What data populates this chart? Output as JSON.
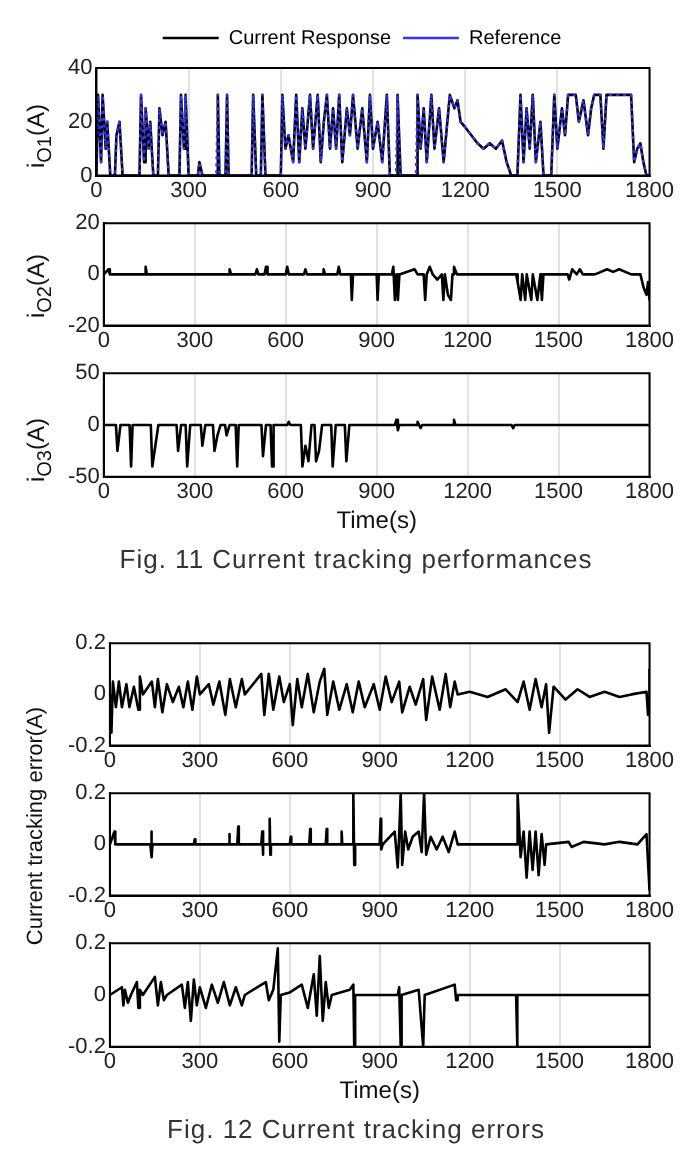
{
  "chart_data": [
    {
      "type": "line",
      "ylabel": "i$_{O1}$(A)",
      "xlim": [
        0,
        1800
      ],
      "xticks": [
        0,
        300,
        600,
        900,
        1200,
        1500,
        1800
      ],
      "ylim": [
        0,
        40
      ],
      "yticks": [
        0,
        20,
        40
      ],
      "grid": "x",
      "legend": "top",
      "marker": "none",
      "x": [
        0,
        5,
        15,
        20,
        30,
        35,
        45,
        60,
        65,
        75,
        85,
        140,
        145,
        155,
        160,
        170,
        175,
        185,
        200,
        205,
        215,
        225,
        235,
        270,
        275,
        285,
        290,
        300,
        330,
        335,
        345,
        390,
        395,
        400,
        420,
        425,
        430,
        505,
        510,
        520,
        535,
        540,
        550,
        600,
        605,
        615,
        625,
        640,
        650,
        660,
        670,
        680,
        695,
        705,
        720,
        730,
        740,
        750,
        760,
        770,
        780,
        790,
        800,
        815,
        825,
        835,
        850,
        865,
        880,
        890,
        900,
        915,
        930,
        945,
        955,
        975,
        980,
        990,
        1040,
        1045,
        1055,
        1065,
        1075,
        1090,
        1100,
        1115,
        1130,
        1150,
        1165,
        1175,
        1185,
        1200,
        1220,
        1240,
        1260,
        1280,
        1300,
        1320,
        1335,
        1350,
        1370,
        1380,
        1390,
        1400,
        1410,
        1420,
        1430,
        1445,
        1455,
        1480,
        1490,
        1500,
        1515,
        1525,
        1535,
        1560,
        1570,
        1585,
        1600,
        1610,
        1620,
        1640,
        1650,
        1660,
        1740,
        1750,
        1760,
        1770,
        1780,
        1790,
        1800
      ],
      "series": [
        {
          "name": "Current Response",
          "color": "#000000",
          "line_style": "solid",
          "values": [
            0,
            30,
            5,
            30,
            10,
            20,
            0,
            0,
            15,
            20,
            0,
            0,
            30,
            5,
            25,
            10,
            20,
            0,
            0,
            25,
            15,
            20,
            0,
            0,
            30,
            10,
            30,
            0,
            0,
            5,
            0,
            0,
            30,
            0,
            0,
            30,
            0,
            0,
            30,
            0,
            0,
            30,
            0,
            0,
            30,
            10,
            15,
            5,
            30,
            5,
            25,
            10,
            30,
            10,
            30,
            5,
            20,
            30,
            10,
            25,
            10,
            30,
            5,
            25,
            15,
            30,
            10,
            25,
            5,
            30,
            10,
            20,
            5,
            30,
            0,
            0,
            30,
            0,
            0,
            30,
            10,
            25,
            5,
            30,
            10,
            25,
            5,
            30,
            25,
            28,
            20,
            18,
            15,
            12,
            10,
            12,
            10,
            13,
            5,
            0,
            0,
            30,
            5,
            25,
            10,
            30,
            5,
            20,
            0,
            0,
            30,
            10,
            25,
            15,
            30,
            30,
            20,
            28,
            15,
            25,
            30,
            30,
            10,
            30,
            30,
            5,
            10,
            12,
            5,
            0,
            0
          ]
        },
        {
          "name": "Reference",
          "color": "#3333ff",
          "line_style": "dotted",
          "values": [
            0,
            30,
            5,
            30,
            10,
            20,
            0,
            0,
            15,
            20,
            0,
            0,
            30,
            5,
            25,
            10,
            20,
            0,
            0,
            25,
            15,
            20,
            0,
            0,
            30,
            10,
            30,
            0,
            0,
            5,
            0,
            0,
            30,
            0,
            0,
            30,
            0,
            0,
            30,
            0,
            0,
            30,
            0,
            0,
            30,
            10,
            15,
            5,
            30,
            5,
            25,
            10,
            30,
            10,
            30,
            5,
            20,
            30,
            10,
            25,
            10,
            30,
            5,
            25,
            15,
            30,
            10,
            25,
            5,
            30,
            10,
            20,
            5,
            30,
            0,
            0,
            30,
            0,
            0,
            30,
            10,
            25,
            5,
            30,
            10,
            25,
            5,
            30,
            25,
            28,
            20,
            18,
            15,
            12,
            10,
            12,
            10,
            13,
            5,
            0,
            0,
            30,
            5,
            25,
            10,
            30,
            5,
            20,
            0,
            0,
            30,
            10,
            25,
            15,
            30,
            30,
            20,
            28,
            15,
            25,
            30,
            30,
            10,
            30,
            30,
            5,
            10,
            12,
            5,
            0,
            0
          ]
        }
      ]
    },
    {
      "type": "line",
      "ylabel": "i$_{O2}$(A)",
      "xlim": [
        0,
        1800
      ],
      "xticks": [
        0,
        300,
        600,
        900,
        1200,
        1500,
        1800
      ],
      "ylim": [
        -20,
        20
      ],
      "yticks": [
        -20,
        0,
        20
      ],
      "grid": "x",
      "marker": "none",
      "x": [
        0,
        15,
        20,
        135,
        138,
        142,
        410,
        415,
        420,
        500,
        505,
        510,
        530,
        535,
        540,
        600,
        605,
        610,
        660,
        665,
        670,
        720,
        725,
        730,
        770,
        775,
        780,
        815,
        818,
        822,
        900,
        903,
        907,
        950,
        955,
        960,
        965,
        970,
        975,
        1025,
        1035,
        1055,
        1060,
        1065,
        1075,
        1085,
        1100,
        1115,
        1120,
        1125,
        1135,
        1145,
        1150,
        1155,
        1165,
        1360,
        1365,
        1375,
        1380,
        1390,
        1395,
        1410,
        1415,
        1430,
        1440,
        1445,
        1450,
        1530,
        1535,
        1545,
        1560,
        1570,
        1580,
        1620,
        1640,
        1660,
        1680,
        1700,
        1720,
        1740,
        1770,
        1780,
        1790,
        1795,
        1800
      ],
      "series": [
        {
          "color": "#000000",
          "values": [
            0,
            2,
            0,
            0,
            3,
            0,
            0,
            2,
            0,
            0,
            2,
            0,
            0,
            3,
            0,
            0,
            3,
            0,
            0,
            2,
            0,
            0,
            2,
            0,
            0,
            3,
            0,
            0,
            -10,
            0,
            0,
            -10,
            0,
            0,
            3,
            -10,
            0,
            -10,
            0,
            2,
            0,
            0,
            -10,
            0,
            3,
            0,
            -2,
            0,
            -10,
            0,
            -8,
            -10,
            0,
            3,
            0,
            0,
            -3,
            -10,
            0,
            -10,
            0,
            -10,
            0,
            -10,
            0,
            -10,
            0,
            0,
            -2,
            2,
            0,
            2,
            0,
            0,
            1,
            2,
            1,
            2,
            1,
            0,
            0,
            -5,
            -8,
            -3,
            -10
          ]
        }
      ]
    },
    {
      "type": "line",
      "ylabel": "i$_{O3}$(A)",
      "xlabel": "Time(s)",
      "annotations": [
        "Fig. 11 Current tracking performances"
      ],
      "xlim": [
        0,
        1800
      ],
      "xticks": [
        0,
        300,
        600,
        900,
        1200,
        1500,
        1800
      ],
      "ylim": [
        -50,
        50
      ],
      "yticks": [
        -50,
        0,
        50
      ],
      "grid": "x",
      "marker": "none",
      "x": [
        0,
        40,
        45,
        55,
        85,
        90,
        95,
        155,
        160,
        170,
        180,
        240,
        245,
        255,
        270,
        275,
        285,
        320,
        325,
        335,
        360,
        365,
        375,
        385,
        400,
        405,
        415,
        435,
        440,
        445,
        520,
        525,
        535,
        550,
        555,
        560,
        605,
        610,
        615,
        650,
        655,
        665,
        675,
        685,
        695,
        700,
        710,
        720,
        750,
        755,
        765,
        795,
        800,
        810,
        960,
        965,
        970,
        975,
        1030,
        1035,
        1040,
        1045,
        1050,
        1150,
        1155,
        1160,
        1345,
        1350,
        1355,
        1800
      ],
      "series": [
        {
          "color": "#000000",
          "values": [
            0,
            0,
            -25,
            0,
            0,
            -40,
            0,
            0,
            -40,
            -20,
            0,
            0,
            -25,
            0,
            0,
            -40,
            0,
            0,
            -20,
            0,
            0,
            -25,
            -10,
            0,
            0,
            -10,
            0,
            0,
            -40,
            0,
            0,
            -30,
            0,
            0,
            -40,
            0,
            0,
            3,
            0,
            0,
            -40,
            -20,
            -35,
            0,
            0,
            -35,
            -25,
            0,
            0,
            -40,
            0,
            0,
            -35,
            0,
            0,
            5,
            -5,
            0,
            0,
            3,
            0,
            -3,
            0,
            0,
            5,
            0,
            0,
            -3,
            0,
            0
          ]
        }
      ]
    },
    {
      "type": "line",
      "xlim": [
        0,
        1800
      ],
      "xticks": [
        0,
        300,
        600,
        900,
        1200,
        1500,
        1800
      ],
      "ylim": [
        -0.2,
        0.2
      ],
      "yticks": [
        -0.2,
        0,
        0.2
      ],
      "grid": "x",
      "marker": "none",
      "x": [
        0,
        5,
        10,
        20,
        30,
        40,
        55,
        65,
        80,
        95,
        100,
        110,
        140,
        150,
        160,
        175,
        190,
        210,
        230,
        245,
        260,
        275,
        290,
        300,
        330,
        345,
        365,
        385,
        400,
        420,
        440,
        450,
        505,
        515,
        530,
        545,
        565,
        580,
        600,
        610,
        625,
        640,
        660,
        680,
        700,
        715,
        725,
        745,
        765,
        790,
        810,
        830,
        850,
        880,
        900,
        920,
        940,
        965,
        975,
        1000,
        1020,
        1045,
        1055,
        1075,
        1100,
        1120,
        1135,
        1150,
        1160,
        1200,
        1260,
        1320,
        1360,
        1380,
        1400,
        1420,
        1440,
        1455,
        1465,
        1480,
        1520,
        1560,
        1600,
        1650,
        1700,
        1740,
        1790,
        1795,
        1800
      ],
      "series": [
        {
          "color": "#000000",
          "values": [
            0,
            -0.15,
            0.05,
            -0.05,
            0.05,
            -0.05,
            0.04,
            -0.05,
            0.03,
            -0.06,
            0.07,
            0,
            0.05,
            -0.05,
            0.06,
            -0.07,
            0.04,
            -0.03,
            0.03,
            -0.05,
            0.05,
            -0.06,
            0.07,
            0,
            0.04,
            -0.04,
            0.05,
            -0.08,
            0.06,
            -0.05,
            0.06,
            0,
            0.08,
            -0.08,
            0.08,
            -0.06,
            0.07,
            -0.03,
            0.04,
            -0.12,
            0.06,
            -0.05,
            0.08,
            -0.07,
            0.05,
            0.1,
            -0.08,
            0.05,
            -0.06,
            0.04,
            -0.07,
            0.05,
            -0.05,
            0.04,
            -0.06,
            0.07,
            -0.03,
            0.05,
            -0.07,
            0.03,
            -0.04,
            0.06,
            -0.1,
            0.07,
            -0.06,
            0.08,
            -0.05,
            0.05,
            0,
            0.01,
            -0.01,
            0.02,
            -0.03,
            0.05,
            -0.06,
            0.06,
            -0.05,
            0.04,
            -0.15,
            0.03,
            -0.02,
            0.02,
            -0.01,
            0.01,
            -0.01,
            0,
            0.01,
            -0.08,
            0.1
          ]
        }
      ]
    },
    {
      "type": "line",
      "ylabel": "Current tracking error(A)",
      "xlim": [
        0,
        1800
      ],
      "xticks": [
        0,
        300,
        600,
        900,
        1200,
        1500,
        1800
      ],
      "ylim": [
        -0.2,
        0.2
      ],
      "yticks": [
        -0.2,
        0,
        0.2
      ],
      "grid": "x",
      "marker": "none",
      "x": [
        0,
        15,
        18,
        135,
        138,
        140,
        142,
        280,
        283,
        285,
        395,
        398,
        400,
        425,
        428,
        430,
        505,
        508,
        510,
        512,
        530,
        533,
        535,
        537,
        600,
        603,
        605,
        665,
        668,
        670,
        720,
        723,
        725,
        770,
        773,
        775,
        810,
        812,
        815,
        818,
        900,
        903,
        905,
        910,
        950,
        960,
        965,
        970,
        975,
        985,
        995,
        1010,
        1030,
        1040,
        1048,
        1055,
        1070,
        1090,
        1110,
        1130,
        1150,
        1160,
        1355,
        1360,
        1370,
        1380,
        1390,
        1400,
        1410,
        1420,
        1430,
        1440,
        1450,
        1455,
        1530,
        1540,
        1580,
        1650,
        1700,
        1760,
        1790,
        1800
      ],
      "series": [
        {
          "color": "#000000",
          "values": [
            0,
            0.05,
            0,
            0,
            0.05,
            -0.05,
            0,
            0,
            0.02,
            0,
            0,
            0.04,
            0,
            0,
            0.07,
            0,
            0,
            0.05,
            -0.04,
            0,
            0,
            0.1,
            -0.04,
            0,
            0,
            0.03,
            0,
            0,
            0.06,
            0,
            0,
            0.06,
            0,
            0,
            0.05,
            0,
            0,
            0.2,
            -0.08,
            0,
            0,
            0.1,
            -0.02,
            0,
            0.05,
            -0.09,
            0.04,
            0.2,
            -0.08,
            0.05,
            -0.02,
            0.03,
            0.05,
            -0.03,
            0.2,
            -0.04,
            0.03,
            -0.02,
            0.03,
            -0.03,
            0.05,
            0,
            0,
            0.2,
            -0.05,
            0.05,
            -0.13,
            0.05,
            -0.1,
            0.05,
            -0.12,
            0.04,
            -0.08,
            0,
            0.01,
            -0.01,
            0.01,
            0,
            0.01,
            0,
            0.04,
            -0.18
          ]
        }
      ]
    },
    {
      "type": "line",
      "xlabel": "Time(s)",
      "annotations": [
        "Fig. 12 Current tracking errors"
      ],
      "xlim": [
        0,
        1800
      ],
      "xticks": [
        0,
        300,
        600,
        900,
        1200,
        1500,
        1800
      ],
      "ylim": [
        -0.2,
        0.2
      ],
      "yticks": [
        -0.2,
        0,
        0.2
      ],
      "grid": "x",
      "marker": "none",
      "x": [
        0,
        40,
        45,
        50,
        60,
        70,
        90,
        95,
        100,
        110,
        150,
        160,
        170,
        180,
        190,
        240,
        250,
        260,
        270,
        280,
        290,
        300,
        320,
        340,
        360,
        380,
        400,
        420,
        440,
        450,
        520,
        530,
        545,
        560,
        565,
        570,
        600,
        640,
        660,
        680,
        690,
        700,
        710,
        720,
        730,
        740,
        800,
        812,
        815,
        818,
        960,
        965,
        970,
        973,
        1030,
        1045,
        1050,
        1150,
        1155,
        1160,
        1355,
        1358,
        1360,
        1800
      ],
      "series": [
        {
          "color": "#000000",
          "values": [
            0,
            0.03,
            -0.04,
            0.02,
            -0.03,
            0,
            0.05,
            -0.05,
            0.02,
            0,
            0.07,
            -0.04,
            0.05,
            -0.02,
            0,
            0.04,
            -0.05,
            0.05,
            -0.1,
            0.06,
            -0.04,
            0.03,
            -0.05,
            0.04,
            -0.03,
            0.05,
            -0.04,
            0.03,
            -0.04,
            0,
            0.05,
            -0.02,
            0.02,
            0.18,
            -0.18,
            0,
            0.01,
            0.04,
            -0.05,
            0.08,
            -0.08,
            0.15,
            -0.1,
            0.05,
            -0.05,
            0,
            0.02,
            0.04,
            -0.2,
            0,
            0,
            0.03,
            -0.2,
            0,
            0.02,
            -0.2,
            0,
            0.04,
            -0.02,
            0,
            0,
            -0.2,
            0,
            0
          ]
        }
      ]
    }
  ]
}
